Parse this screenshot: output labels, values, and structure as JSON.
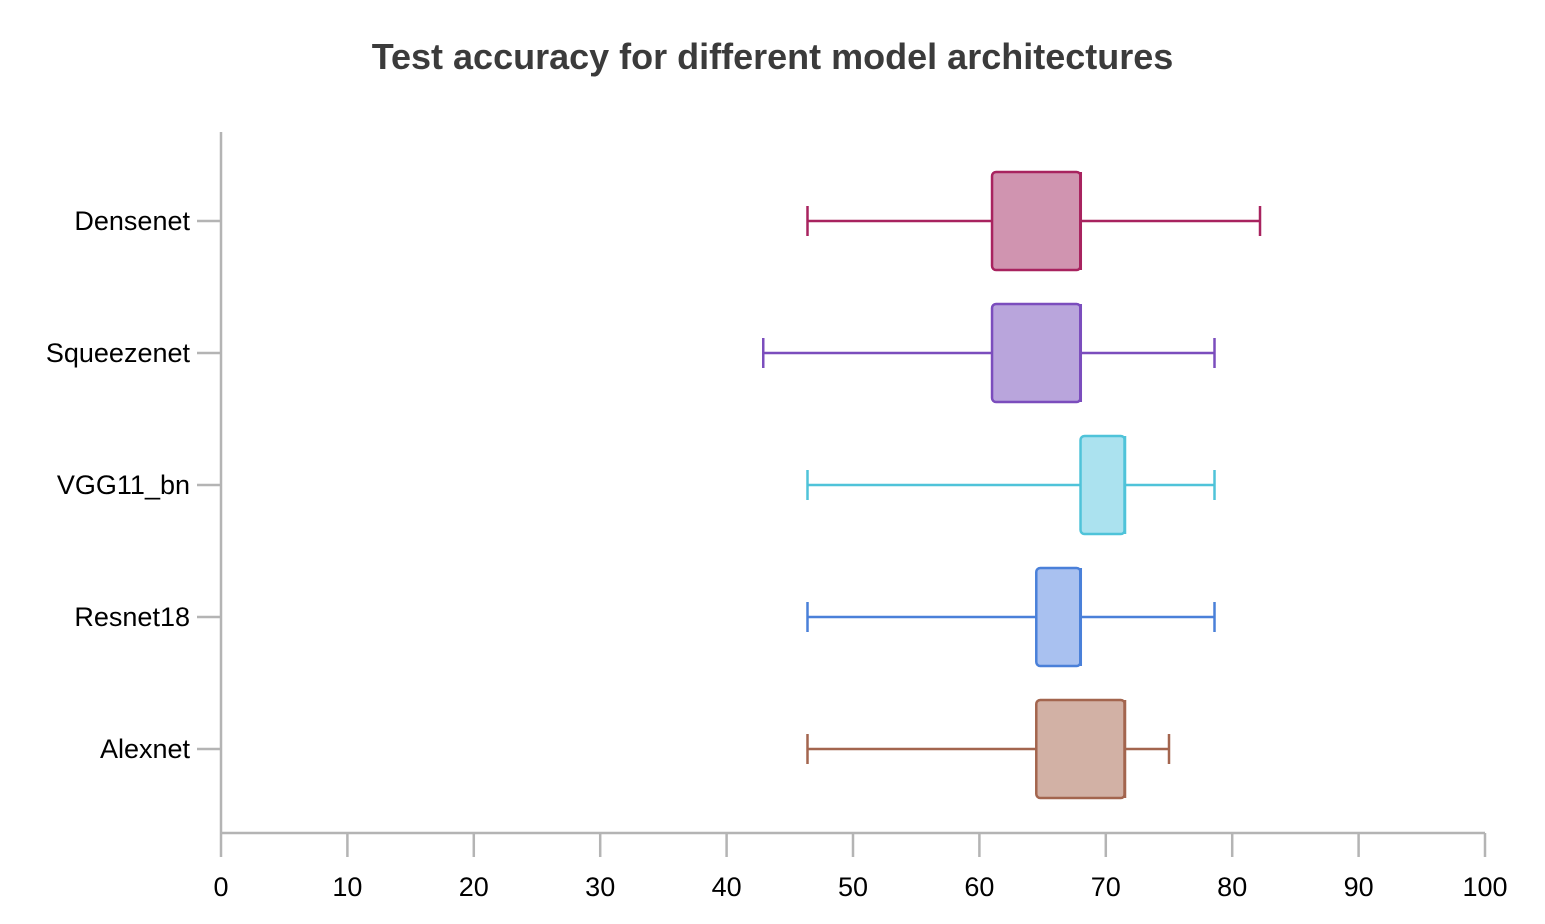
{
  "chart_data": {
    "type": "box",
    "orientation": "horizontal",
    "title": "Test accuracy for different model architectures",
    "xlabel": "",
    "ylabel": "",
    "xlim": [
      0,
      100
    ],
    "x_ticks": [
      0,
      10,
      20,
      30,
      40,
      50,
      60,
      70,
      80,
      90,
      100
    ],
    "x_tick_labels": [
      "0",
      "10",
      "20",
      "30",
      "40",
      "50",
      "60",
      "70",
      "80",
      "90",
      "100"
    ],
    "grid": false,
    "legend": "none",
    "categories": [
      "Densenet",
      "Squeezenet",
      "VGG11_bn",
      "Resnet18",
      "Alexnet"
    ],
    "series": [
      {
        "category": "Densenet",
        "min": 46.4,
        "q1": 61.0,
        "median": 68.0,
        "q3": 68.0,
        "max": 82.2,
        "color": "#a8235f",
        "fill": "#d094b0"
      },
      {
        "category": "Squeezenet",
        "min": 42.9,
        "q1": 61.0,
        "median": 68.0,
        "q3": 68.0,
        "max": 78.6,
        "color": "#7b4dbd",
        "fill": "#b9a5dc"
      },
      {
        "category": "VGG11_bn",
        "min": 46.4,
        "q1": 68.0,
        "median": 71.5,
        "q3": 71.5,
        "max": 78.6,
        "color": "#4fc3d9",
        "fill": "#abe2ef"
      },
      {
        "category": "Resnet18",
        "min": 46.4,
        "q1": 64.5,
        "median": 68.0,
        "q3": 68.0,
        "max": 78.6,
        "color": "#4a80d9",
        "fill": "#a9c1f0"
      },
      {
        "category": "Alexnet",
        "min": 46.4,
        "q1": 64.5,
        "median": 71.5,
        "q3": 71.5,
        "max": 75.0,
        "color": "#a3654e",
        "fill": "#d2b1a5"
      }
    ]
  }
}
